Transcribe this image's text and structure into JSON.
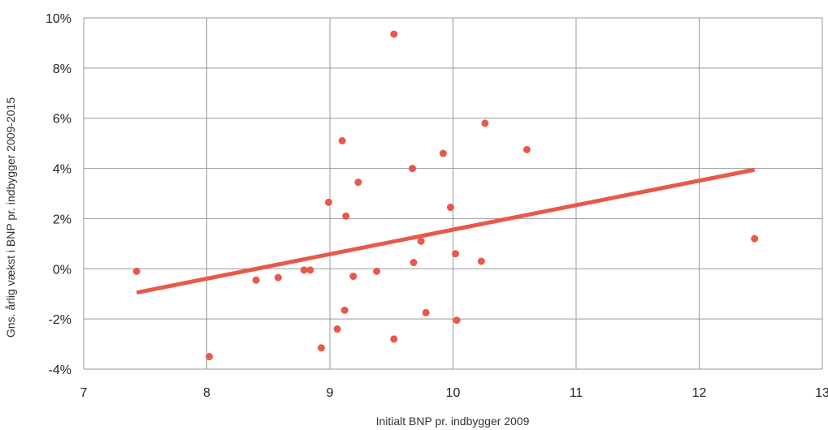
{
  "chart_data": {
    "type": "scatter",
    "title": "",
    "xlabel": "Initialt BNP pr. indbygger 2009",
    "ylabel": "Gns. årlig vækst i BNP pr. indbygger 2009-2015",
    "xlim": [
      7,
      13
    ],
    "ylim": [
      -4,
      10
    ],
    "x_ticks": [
      7,
      8,
      9,
      10,
      11,
      12,
      13
    ],
    "x_tick_labels": [
      "7",
      "8",
      "9",
      "10",
      "11",
      "12",
      "13"
    ],
    "y_ticks": [
      -4,
      -2,
      0,
      2,
      4,
      6,
      8,
      10
    ],
    "y_tick_labels": [
      "-4%",
      "-2%",
      "0%",
      "2%",
      "4%",
      "6%",
      "8%",
      "10%"
    ],
    "grid": true,
    "legend": "none",
    "colors": {
      "points": "#e8594a",
      "trend": "#e8594a",
      "grid": "#999999"
    },
    "points": [
      {
        "x": 7.43,
        "y": -0.1
      },
      {
        "x": 8.02,
        "y": -3.5
      },
      {
        "x": 8.4,
        "y": -0.45
      },
      {
        "x": 8.58,
        "y": -0.35
      },
      {
        "x": 8.79,
        "y": -0.05
      },
      {
        "x": 8.84,
        "y": -0.05
      },
      {
        "x": 8.93,
        "y": -3.15
      },
      {
        "x": 8.99,
        "y": 2.65
      },
      {
        "x": 9.06,
        "y": -2.4
      },
      {
        "x": 9.1,
        "y": 5.1
      },
      {
        "x": 9.12,
        "y": -1.65
      },
      {
        "x": 9.13,
        "y": 2.1
      },
      {
        "x": 9.19,
        "y": -0.3
      },
      {
        "x": 9.23,
        "y": 3.45
      },
      {
        "x": 9.38,
        "y": -0.1
      },
      {
        "x": 9.52,
        "y": 9.35
      },
      {
        "x": 9.52,
        "y": -2.8
      },
      {
        "x": 9.67,
        "y": 4.0
      },
      {
        "x": 9.68,
        "y": 0.25
      },
      {
        "x": 9.74,
        "y": 1.1
      },
      {
        "x": 9.78,
        "y": -1.75
      },
      {
        "x": 9.92,
        "y": 4.6
      },
      {
        "x": 9.98,
        "y": 2.45
      },
      {
        "x": 10.02,
        "y": 0.6
      },
      {
        "x": 10.03,
        "y": -2.05
      },
      {
        "x": 10.23,
        "y": 0.3
      },
      {
        "x": 10.26,
        "y": 5.8
      },
      {
        "x": 10.6,
        "y": 4.75
      },
      {
        "x": 12.45,
        "y": 1.2
      }
    ],
    "trendline": {
      "x": [
        7.43,
        12.45
      ],
      "y": [
        -0.95,
        3.95
      ]
    }
  }
}
